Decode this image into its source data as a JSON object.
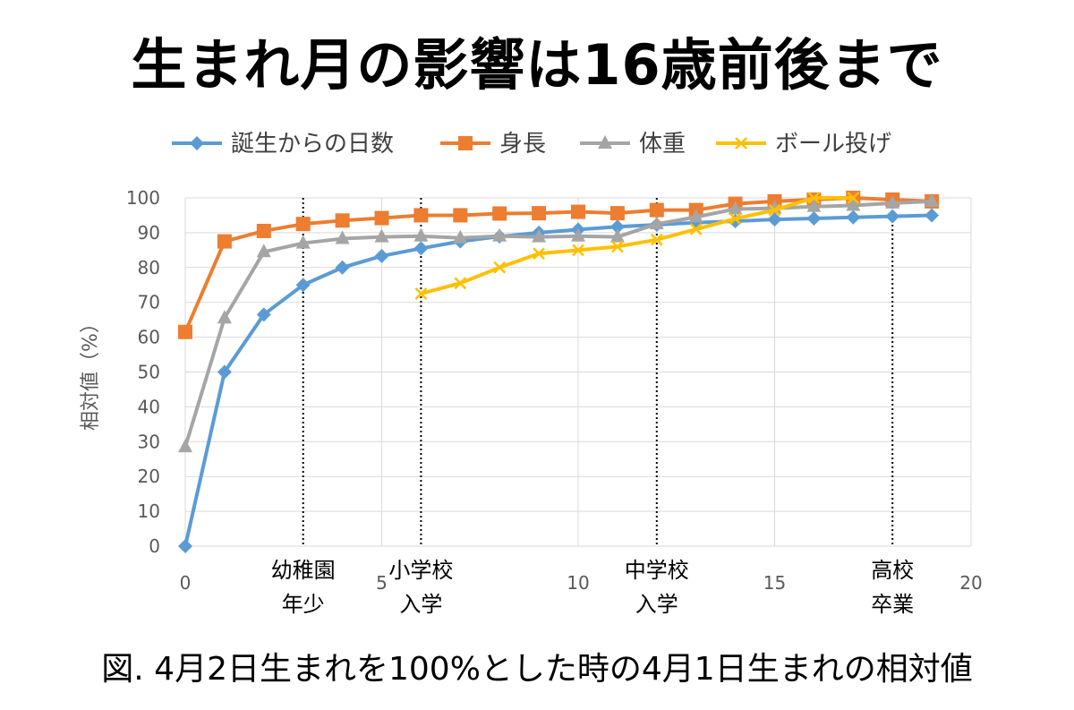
{
  "title": "生まれ月の影響は16歳前後まで",
  "caption": "図. 4月2日生まれを100%とした時の4月1日生まれの相対値",
  "chart_data": {
    "type": "line",
    "ylabel": "相対値（%）",
    "xlabel": "",
    "xlim": [
      0,
      20
    ],
    "ylim": [
      0,
      100
    ],
    "x_ticks": [
      0,
      5,
      10,
      15,
      20
    ],
    "y_ticks": [
      0,
      10,
      20,
      30,
      40,
      50,
      60,
      70,
      80,
      90,
      100
    ],
    "grid": true,
    "legend_position": "top",
    "series": [
      {
        "name": "誕生からの日数",
        "color": "#5b9bd5",
        "marker": "diamond",
        "x": [
          0,
          1,
          2,
          3,
          4,
          5,
          6,
          7,
          8,
          9,
          10,
          11,
          12,
          13,
          14,
          15,
          16,
          17,
          18,
          19
        ],
        "values": [
          0,
          50,
          66.5,
          75,
          80,
          83.3,
          85.5,
          87.5,
          88.9,
          90,
          90.9,
          91.7,
          92.3,
          92.9,
          93.3,
          93.8,
          94.1,
          94.4,
          94.7,
          95
        ]
      },
      {
        "name": "身長",
        "color": "#ed7d31",
        "marker": "square",
        "x": [
          0,
          1,
          2,
          3,
          4,
          5,
          6,
          7,
          8,
          9,
          10,
          11,
          12,
          13,
          14,
          15,
          16,
          17,
          18,
          19
        ],
        "values": [
          61.5,
          87.5,
          90.5,
          92.5,
          93.5,
          94.2,
          95,
          95,
          95.5,
          95.6,
          96,
          95.6,
          96.5,
          96.5,
          98.3,
          99,
          99.5,
          100,
          99.5,
          99
        ]
      },
      {
        "name": "体重",
        "color": "#a5a5a5",
        "marker": "triangle",
        "x": [
          0,
          1,
          2,
          3,
          4,
          5,
          6,
          7,
          8,
          9,
          10,
          11,
          12,
          13,
          14,
          15,
          16,
          17,
          18,
          19
        ],
        "values": [
          28.5,
          65.5,
          84.5,
          87,
          88.3,
          88.8,
          89,
          88.5,
          89,
          88.8,
          89,
          88.8,
          92.5,
          94.5,
          96.8,
          97,
          97.5,
          97.8,
          98.5,
          99
        ]
      },
      {
        "name": "ボール投げ",
        "color": "#ffc000",
        "marker": "x",
        "x": [
          6,
          7,
          8,
          9,
          10,
          11,
          12,
          13,
          14,
          15,
          16,
          17
        ],
        "values": [
          72.5,
          75.5,
          80,
          84,
          85,
          86,
          88,
          91,
          94,
          96.5,
          100,
          100
        ]
      }
    ],
    "markers": [
      {
        "x": 3,
        "label": [
          "幼稚園",
          "年少"
        ]
      },
      {
        "x": 6,
        "label": [
          "小学校",
          "入学"
        ]
      },
      {
        "x": 12,
        "label": [
          "中学校",
          "入学"
        ]
      },
      {
        "x": 18,
        "label": [
          "高校",
          "卒業"
        ]
      }
    ]
  }
}
